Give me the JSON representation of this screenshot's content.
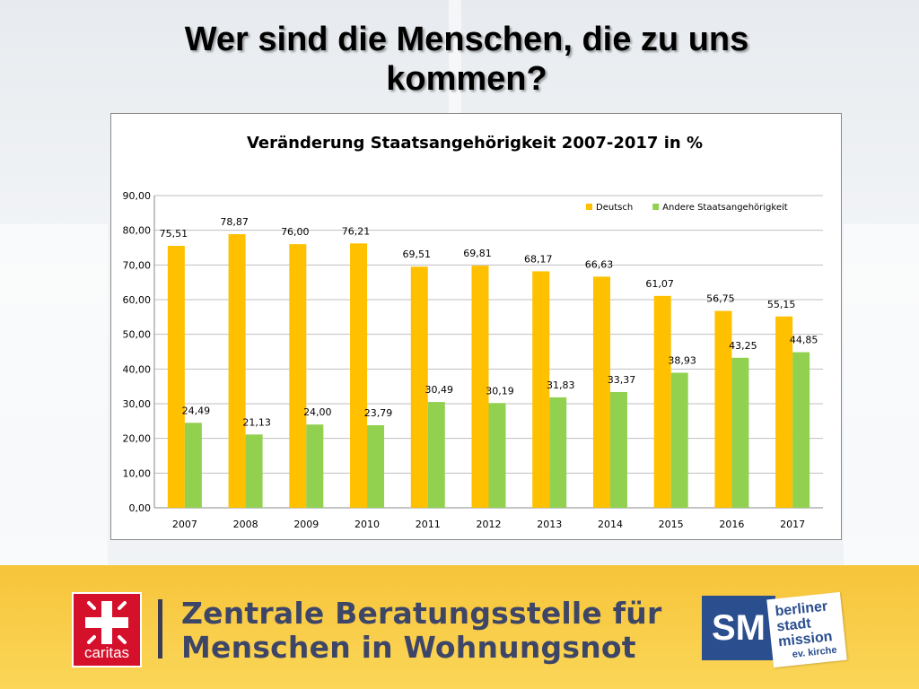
{
  "slide": {
    "title_line1": "Wer sind die Menschen, die zu uns",
    "title_line2": "kommen?"
  },
  "chart_data": {
    "type": "bar",
    "title": "Veränderung Staatsangehörigkeit 2007-2017 in %",
    "categories": [
      "2007",
      "2008",
      "2009",
      "2010",
      "2011",
      "2012",
      "2013",
      "2014",
      "2015",
      "2016",
      "2017"
    ],
    "series": [
      {
        "name": "Deutsch",
        "color": "#ffc000",
        "values": [
          75.51,
          78.87,
          76.0,
          76.21,
          69.51,
          69.81,
          68.17,
          66.63,
          61.07,
          56.75,
          55.15
        ],
        "labels": [
          "75,51",
          "78,87",
          "76,00",
          "76,21",
          "69,51",
          "69,81",
          "68,17",
          "66,63",
          "61,07",
          "56,75",
          "55,15"
        ]
      },
      {
        "name": "Andere Staatsangehörigkeit",
        "color": "#92d050",
        "values": [
          24.49,
          21.13,
          24.0,
          23.79,
          30.49,
          30.19,
          31.83,
          33.37,
          38.93,
          43.25,
          44.85
        ],
        "labels": [
          "24,49",
          "21,13",
          "24,00",
          "23,79",
          "30,49",
          "30,19",
          "31,83",
          "33,37",
          "38,93",
          "43,25",
          "44,85"
        ]
      }
    ],
    "y_ticks": [
      "0,00",
      "10,00",
      "20,00",
      "30,00",
      "40,00",
      "50,00",
      "60,00",
      "70,00",
      "80,00",
      "90,00"
    ],
    "ylim": [
      0,
      90
    ],
    "grid": true,
    "legend_position": "top-right"
  },
  "footer": {
    "caritas_label": "caritas",
    "org_line1": "Zentrale Beratungsstelle für",
    "org_line2": "Menschen in Wohnungsnot",
    "sm_label": "SM",
    "bsm_line1": "berliner",
    "bsm_line2": "stadt",
    "bsm_line3": "mission",
    "bsm_line4": "ev. kirche"
  }
}
